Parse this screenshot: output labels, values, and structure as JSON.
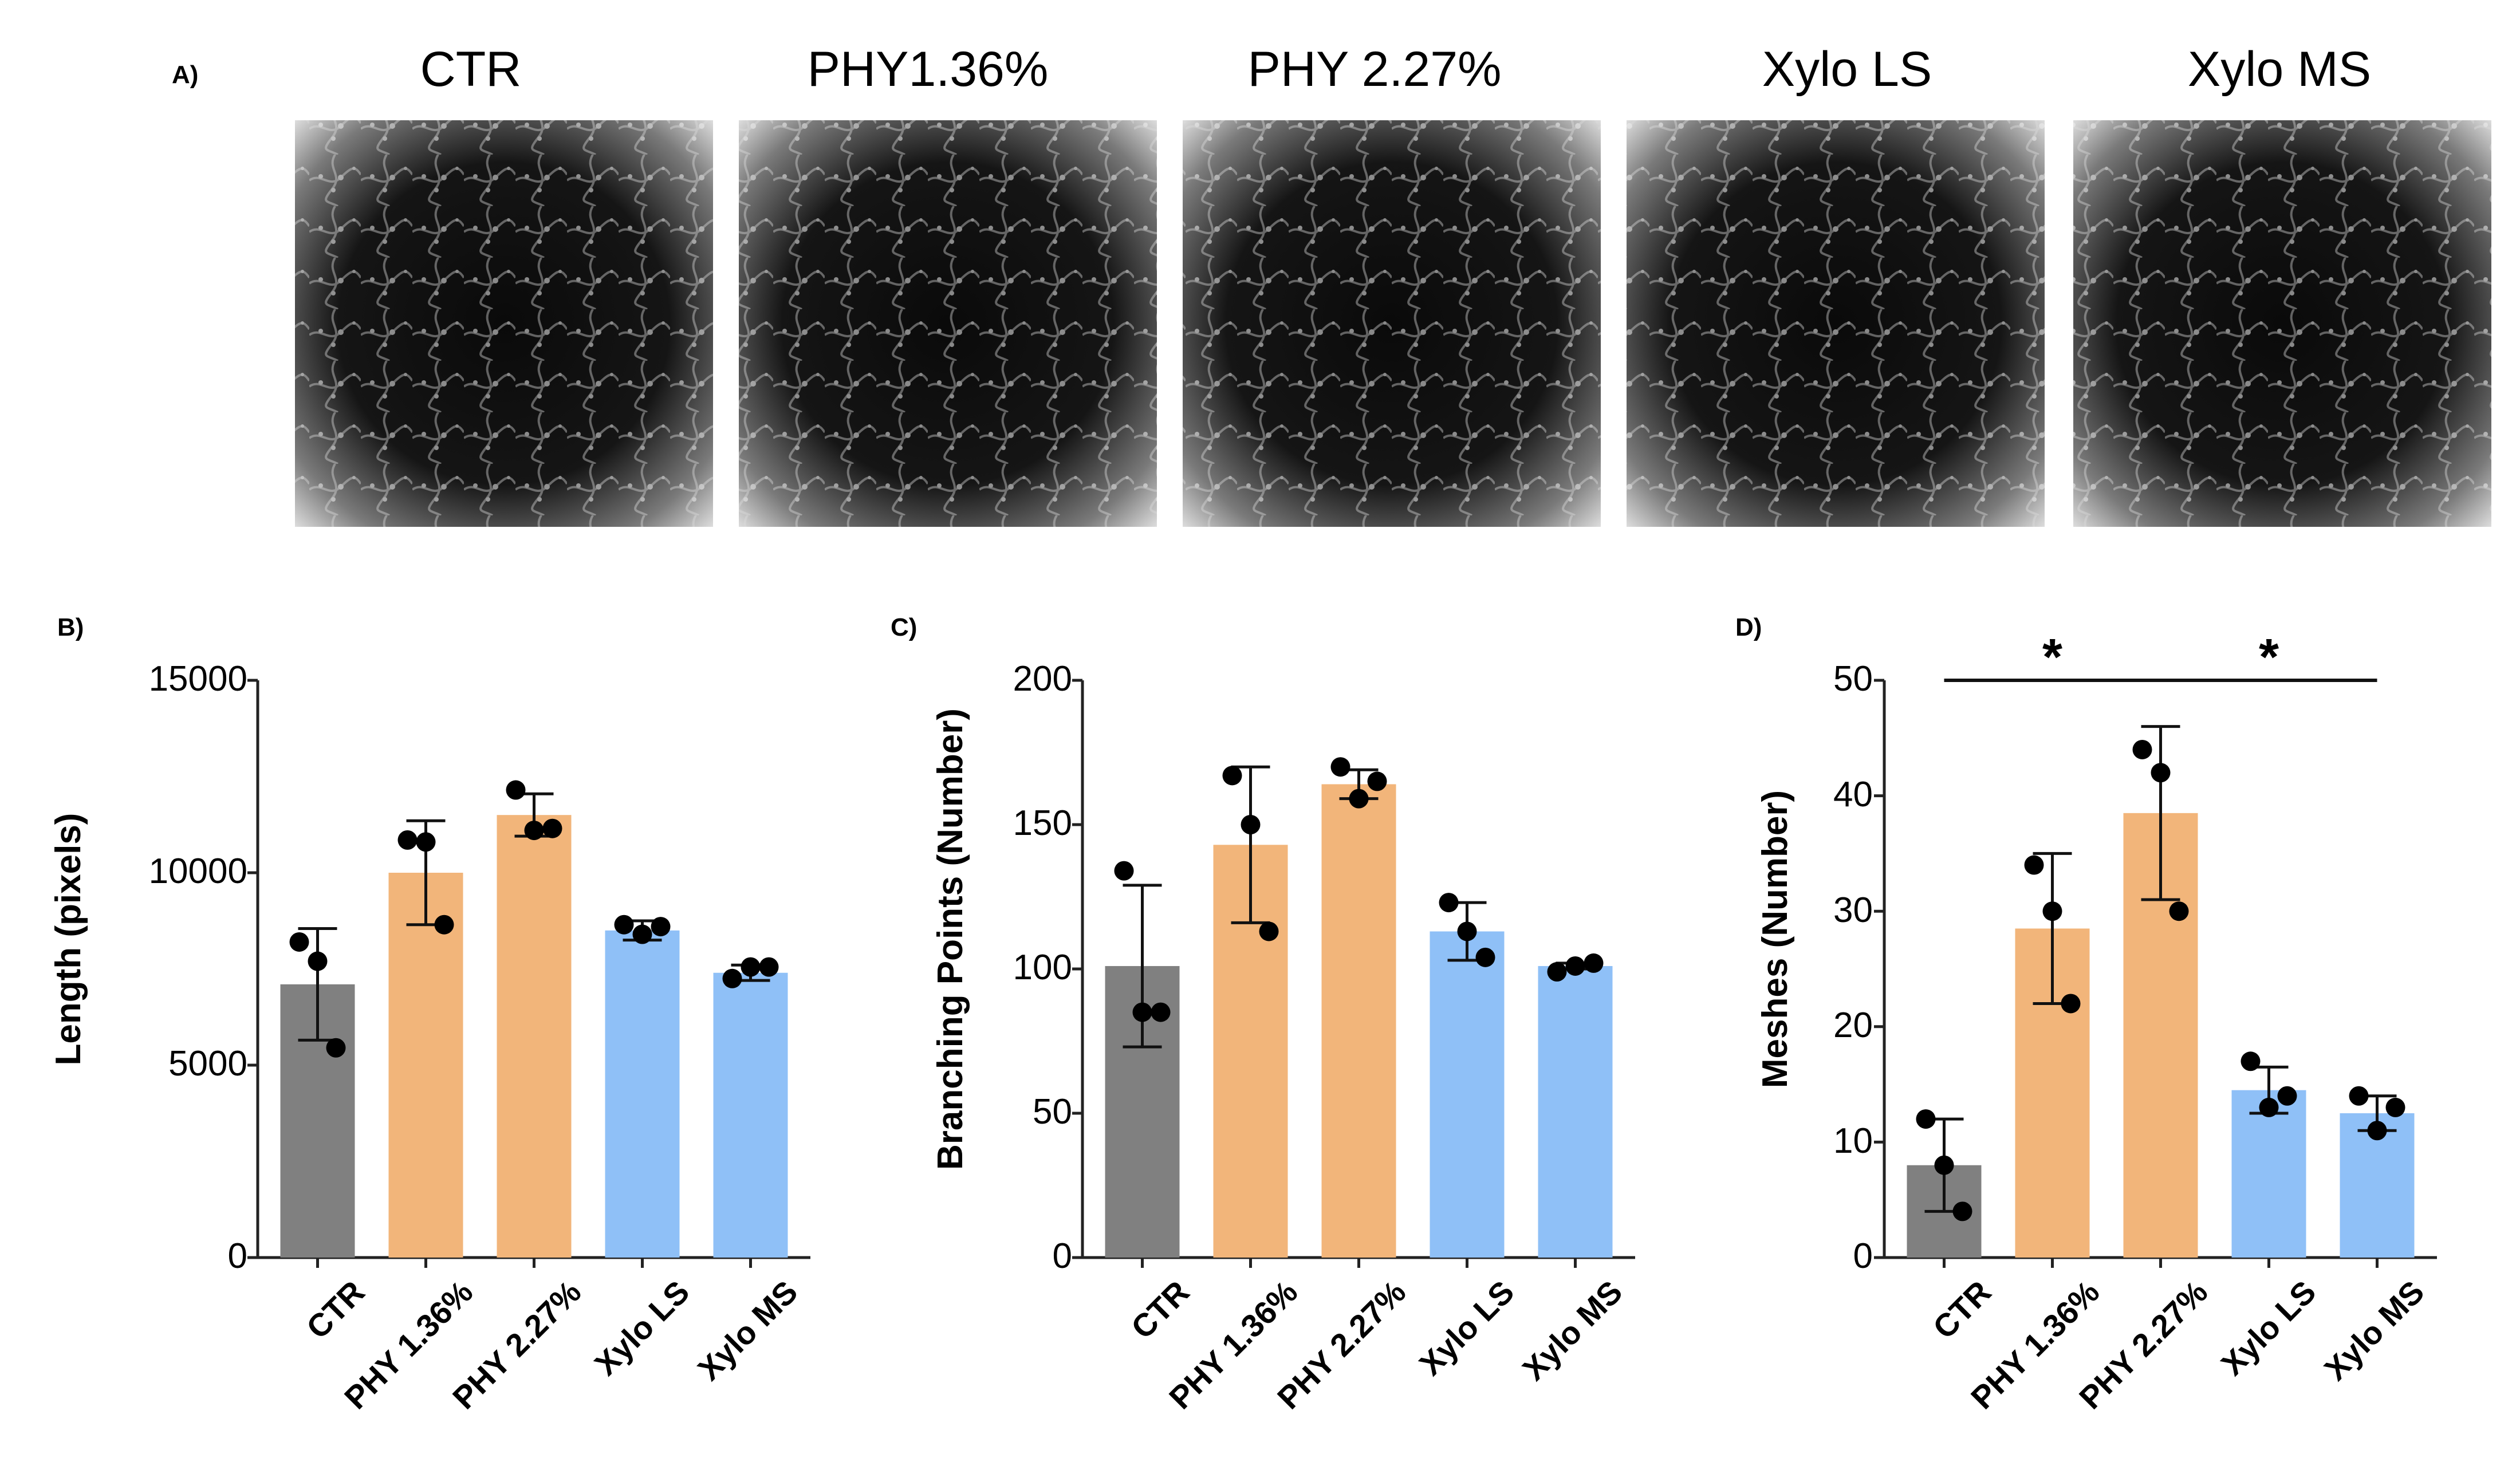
{
  "panel_a": {
    "letter": "A)",
    "images": [
      {
        "title": "CTR"
      },
      {
        "title": "PHY1.36%"
      },
      {
        "title": "PHY 2.27%"
      },
      {
        "title": "Xylo LS"
      },
      {
        "title": "Xylo MS"
      }
    ]
  },
  "colors": {
    "CTR": "#808080",
    "PHY": "#f2b57a",
    "Xylo": "#8fc0f7",
    "points": "#000000",
    "axis": "#222222"
  },
  "chart_data": [
    {
      "letter": "B)",
      "type": "bar",
      "title": "",
      "xlabel": "",
      "ylabel": "Length (pixels)",
      "ylim": [
        0,
        15000
      ],
      "yticks": [
        "0",
        "5000",
        "10000",
        "15000"
      ],
      "categories": [
        "CTR",
        "PHY 1.36%",
        "PHY 2.27%",
        "Xylo LS",
        "Xylo MS"
      ],
      "values": [
        7100,
        10000,
        11500,
        8500,
        7400
      ],
      "error_sd": [
        1450,
        1350,
        550,
        250,
        200
      ],
      "points": [
        [
          8200,
          7700,
          5450
        ],
        [
          10850,
          10800,
          8650
        ],
        [
          12150,
          11100,
          11150
        ],
        [
          8650,
          8400,
          8600
        ],
        [
          7250,
          7550,
          7550
        ]
      ],
      "significance": []
    },
    {
      "letter": "C)",
      "type": "bar",
      "title": "",
      "xlabel": "",
      "ylabel": "Branching Points (Number)",
      "ylim": [
        0,
        200
      ],
      "yticks": [
        "0",
        "50",
        "100",
        "150",
        "200"
      ],
      "categories": [
        "CTR",
        "PHY 1.36%",
        "PHY 2.27%",
        "Xylo LS",
        "Xylo MS"
      ],
      "values": [
        101,
        143,
        164,
        113,
        101
      ],
      "error_sd": [
        28,
        27,
        5,
        10,
        1
      ],
      "points": [
        [
          134,
          85,
          85
        ],
        [
          167,
          150,
          113
        ],
        [
          170,
          159,
          165
        ],
        [
          123,
          113,
          104
        ],
        [
          99,
          101,
          102
        ]
      ],
      "significance": []
    },
    {
      "letter": "D)",
      "type": "bar",
      "title": "",
      "xlabel": "",
      "ylabel": "Meshes (Number)",
      "ylim": [
        0,
        50
      ],
      "yticks": [
        "0",
        "10",
        "20",
        "30",
        "40",
        "50"
      ],
      "categories": [
        "CTR",
        "PHY 1.36%",
        "PHY 2.27%",
        "Xylo LS",
        "Xylo MS"
      ],
      "values": [
        8,
        28.5,
        38.5,
        14.5,
        12.5
      ],
      "error_sd": [
        4,
        6.5,
        7.5,
        2,
        1.5
      ],
      "points": [
        [
          12,
          8,
          4
        ],
        [
          34,
          30,
          22
        ],
        [
          44,
          42,
          30
        ],
        [
          17,
          13,
          14
        ],
        [
          14,
          11,
          13
        ]
      ],
      "significance": [
        {
          "from": 0,
          "to": 2,
          "label": "*"
        },
        {
          "from": 2,
          "to": 4,
          "label": "*"
        }
      ]
    }
  ]
}
